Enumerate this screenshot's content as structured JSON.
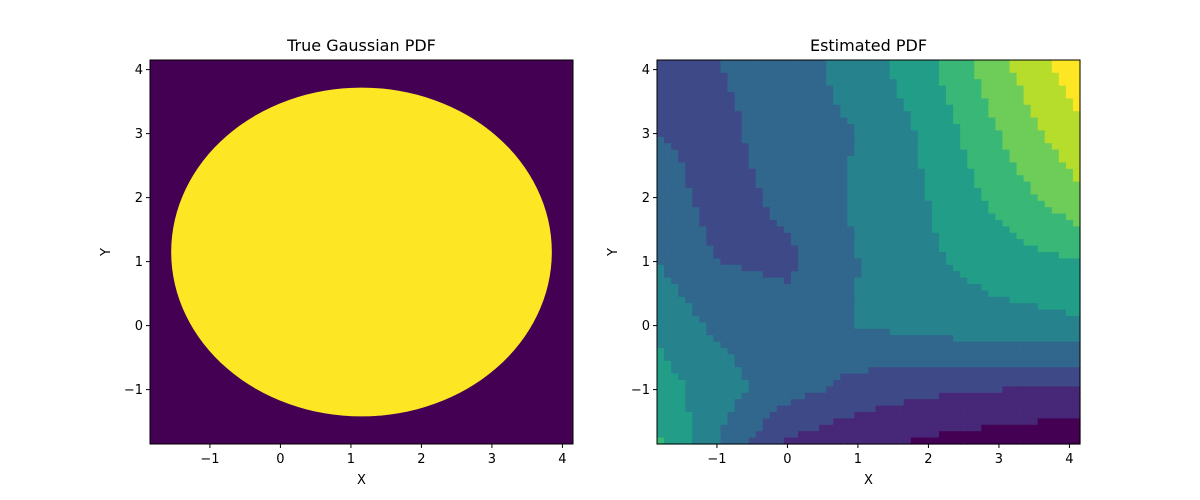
{
  "chart_data": [
    {
      "type": "heatmap",
      "subtype": "filled-contour",
      "title": "True Gaussian PDF",
      "xlabel": "X",
      "ylabel": "Y",
      "xlim": [
        -1.85,
        4.15
      ],
      "ylim": [
        -1.85,
        4.15
      ],
      "xticks": [
        -1,
        0,
        1,
        2,
        3,
        4
      ],
      "yticks": [
        -1,
        0,
        1,
        2,
        3,
        4
      ],
      "xtick_labels": [
        "−1",
        "0",
        "1",
        "2",
        "3",
        "4"
      ],
      "ytick_labels": [
        "−1",
        "0",
        "1",
        "2",
        "3",
        "4"
      ],
      "colormap": "viridis",
      "levels": 14,
      "peak": {
        "x": 1.15,
        "y": 1.15
      },
      "sigma": {
        "x": 2.0,
        "y": 2.3
      },
      "grid": false
    },
    {
      "type": "heatmap",
      "subtype": "filled-contour",
      "title": "Estimated PDF",
      "xlabel": "X",
      "ylabel": "Y",
      "xlim": [
        -1.85,
        4.15
      ],
      "ylim": [
        -1.85,
        4.15
      ],
      "xticks": [
        -1,
        0,
        1,
        2,
        3,
        4
      ],
      "yticks": [
        -1,
        0,
        1,
        2,
        3,
        4
      ],
      "xtick_labels": [
        "−1",
        "0",
        "1",
        "2",
        "3",
        "4"
      ],
      "ytick_labels": [
        "−1",
        "0",
        "1",
        "2",
        "3",
        "4"
      ],
      "colormap": "viridis",
      "levels": 10,
      "grid_x": [
        -1.85,
        -1.0,
        0.0,
        1.0,
        2.0,
        3.0,
        4.15
      ],
      "grid_y": [
        4.15,
        3.0,
        2.0,
        1.0,
        0.0,
        -1.0,
        -1.85
      ],
      "z": [
        [
          0.25,
          0.3,
          0.35,
          0.45,
          0.58,
          0.78,
          0.98
        ],
        [
          0.3,
          0.27,
          0.35,
          0.4,
          0.52,
          0.7,
          0.88
        ],
        [
          0.35,
          0.26,
          0.32,
          0.42,
          0.5,
          0.63,
          0.78
        ],
        [
          0.4,
          0.3,
          0.28,
          0.4,
          0.48,
          0.55,
          0.6
        ],
        [
          0.48,
          0.38,
          0.34,
          0.4,
          0.44,
          0.46,
          0.48
        ],
        [
          0.55,
          0.45,
          0.34,
          0.26,
          0.22,
          0.2,
          0.18
        ],
        [
          0.62,
          0.4,
          0.18,
          0.12,
          0.08,
          0.05,
          0.02
        ]
      ],
      "grid": false
    }
  ]
}
